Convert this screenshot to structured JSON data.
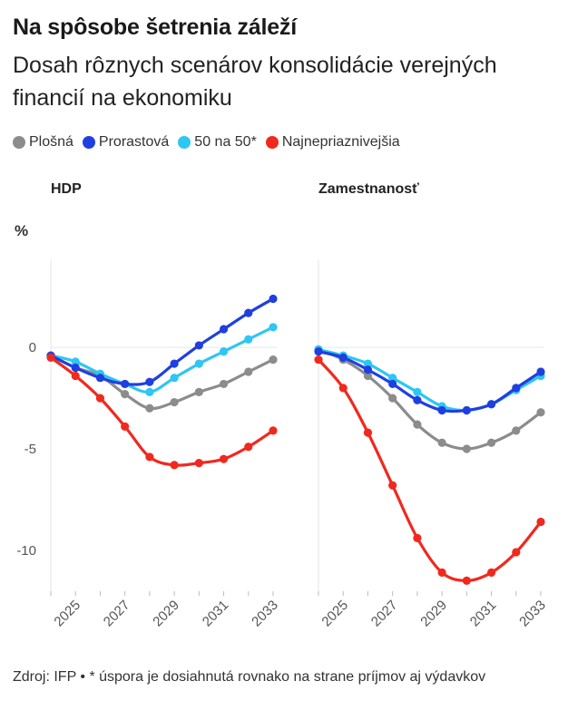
{
  "title": "Na spôsobe šetrenia záleží",
  "subtitle": "Dosah rôznych scenárov konsolidácie verejných financií na ekonomiku",
  "legend": [
    {
      "label": "Plošná",
      "color": "#8c8c8c"
    },
    {
      "label": "Prorastová",
      "color": "#1f3fe0"
    },
    {
      "label": "50 na 50*",
      "color": "#2ec6f2"
    },
    {
      "label": "Najnepriaznivejšia",
      "color": "#f0291e"
    }
  ],
  "unit_label": "%",
  "source": "Zdroj: IFP • * úspora je dosiahnutá rovnako na strane príjmov aj výdavkov",
  "chart_data": [
    {
      "type": "line",
      "title": "HDP",
      "ylabel": "%",
      "x": [
        2024,
        2025,
        2026,
        2027,
        2028,
        2029,
        2030,
        2031,
        2032,
        2033
      ],
      "x_ticks": [
        "2025",
        "2027",
        "2029",
        "2031",
        "2033"
      ],
      "y_ticks": [
        "0",
        "-5",
        "-10"
      ],
      "ylim": [
        -12.2,
        4.3
      ],
      "grid": "vertical-none, horizontal at 0",
      "series": [
        {
          "name": "Plošná",
          "values": [
            -0.4,
            -1.0,
            -1.4,
            -2.3,
            -3.0,
            -2.7,
            -2.2,
            -1.8,
            -1.2,
            -0.6
          ]
        },
        {
          "name": "Prorastová",
          "values": [
            -0.4,
            -1.0,
            -1.5,
            -1.8,
            -1.7,
            -0.8,
            0.1,
            0.9,
            1.7,
            2.4
          ]
        },
        {
          "name": "50 na 50*",
          "values": [
            -0.4,
            -0.7,
            -1.3,
            -1.8,
            -2.2,
            -1.5,
            -0.8,
            -0.2,
            0.4,
            1.0
          ]
        },
        {
          "name": "Najnepriaznivejšia",
          "values": [
            -0.5,
            -1.4,
            -2.5,
            -3.9,
            -5.4,
            -5.8,
            -5.7,
            -5.5,
            -4.9,
            -4.1
          ]
        }
      ]
    },
    {
      "type": "line",
      "title": "Zamestnanosť",
      "ylabel": "%",
      "x": [
        2024,
        2025,
        2026,
        2027,
        2028,
        2029,
        2030,
        2031,
        2032,
        2033
      ],
      "x_ticks": [
        "2025",
        "2027",
        "2029",
        "2031",
        "2033"
      ],
      "ylim": [
        -12.2,
        4.3
      ],
      "series": [
        {
          "name": "Plošná",
          "values": [
            -0.1,
            -0.6,
            -1.4,
            -2.5,
            -3.8,
            -4.7,
            -5.0,
            -4.7,
            -4.1,
            -3.2
          ]
        },
        {
          "name": "Prorastová",
          "values": [
            -0.2,
            -0.5,
            -1.1,
            -1.8,
            -2.6,
            -3.1,
            -3.1,
            -2.8,
            -2.0,
            -1.2
          ]
        },
        {
          "name": "50 na 50*",
          "values": [
            -0.1,
            -0.4,
            -0.8,
            -1.5,
            -2.2,
            -2.9,
            -3.1,
            -2.8,
            -2.1,
            -1.4
          ]
        },
        {
          "name": "Najnepriaznivejšia",
          "values": [
            -0.6,
            -2.0,
            -4.2,
            -6.8,
            -9.4,
            -11.1,
            -11.5,
            -11.1,
            -10.1,
            -8.6
          ]
        }
      ]
    }
  ]
}
